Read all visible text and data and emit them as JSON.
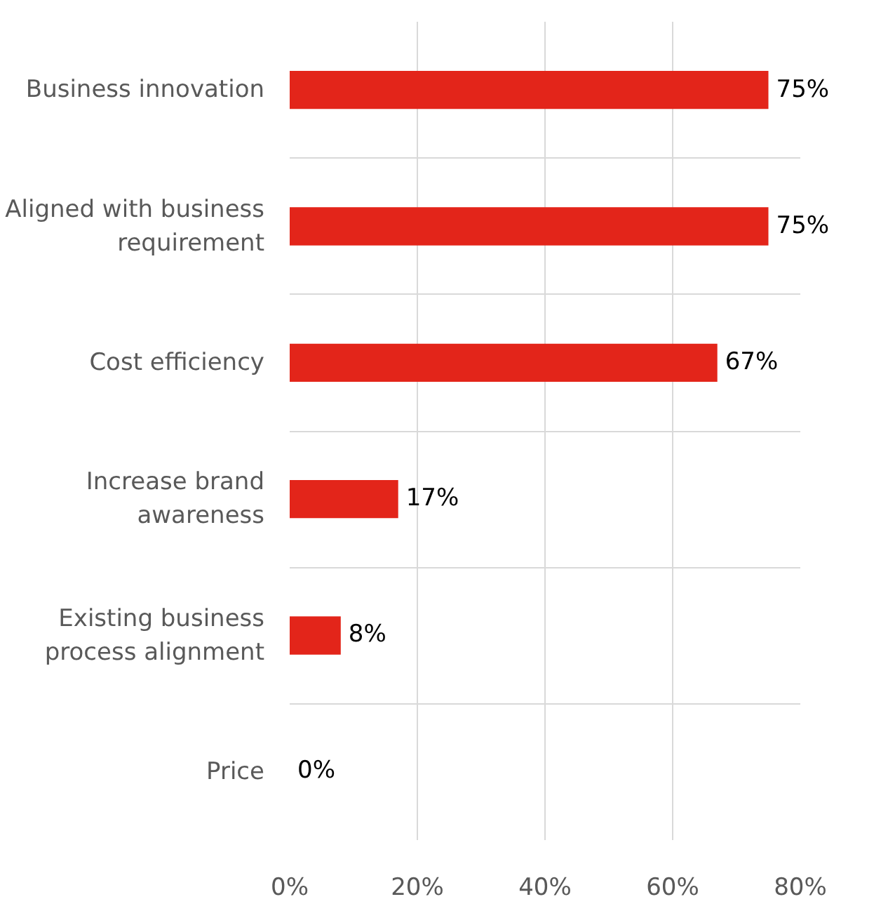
{
  "chart_data": {
    "type": "bar",
    "orientation": "horizontal",
    "categories": [
      "Business innovation",
      "Aligned with business requirement",
      "Cost efficiency",
      "Increase brand awareness",
      "Existing business process alignment",
      "Price"
    ],
    "values": [
      75,
      75,
      67,
      17,
      8,
      0
    ],
    "value_labels": [
      "75%",
      "75%",
      "67%",
      "17%",
      "8%",
      "0%"
    ],
    "color": "#e3251a",
    "xlim": [
      0,
      80
    ],
    "xticks": [
      {
        "value": 0,
        "label": "0%"
      },
      {
        "value": 20,
        "label": "20%"
      },
      {
        "value": 40,
        "label": "40%"
      },
      {
        "value": 60,
        "label": "60%"
      },
      {
        "value": 80,
        "label": "80%"
      }
    ],
    "grid": true
  }
}
